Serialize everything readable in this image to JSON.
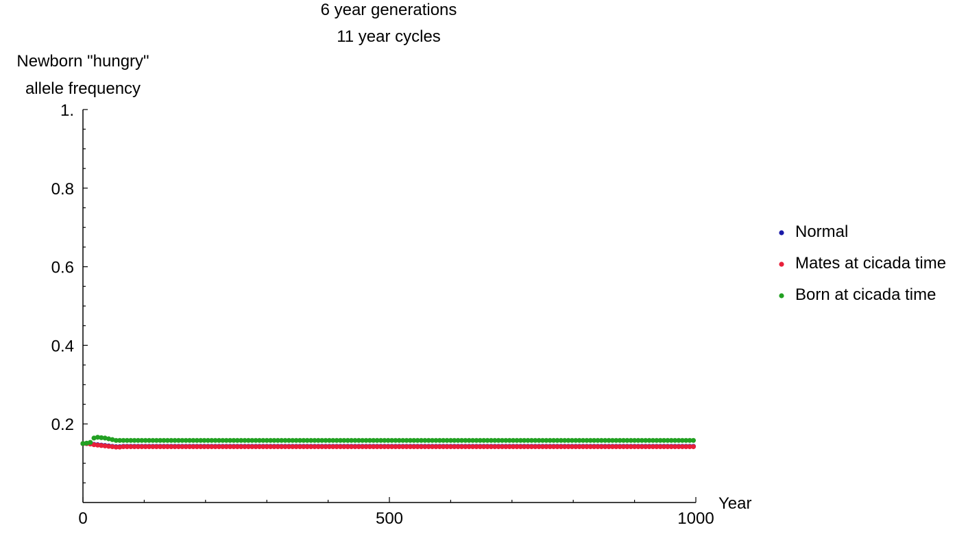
{
  "chart_data": {
    "type": "scatter",
    "title_lines": [
      "6 year generations",
      "11 year cycles"
    ],
    "ylabel_lines": [
      "Newborn \"hungry\"",
      "allele frequency"
    ],
    "xlabel": "Year",
    "xlim": [
      0,
      1000
    ],
    "ylim": [
      0,
      1
    ],
    "x_ticks": [
      {
        "value": 0,
        "label": "0"
      },
      {
        "value": 500,
        "label": "500"
      },
      {
        "value": 1000,
        "label": "1000"
      }
    ],
    "y_ticks": [
      {
        "value": 0.2,
        "label": "0.2"
      },
      {
        "value": 0.4,
        "label": "0.4"
      },
      {
        "value": 0.6,
        "label": "0.6"
      },
      {
        "value": 0.8,
        "label": "0.8"
      },
      {
        "value": 1.0,
        "label": "1."
      }
    ],
    "legend_position": "right",
    "x_step": 6,
    "series": [
      {
        "name": "Normal",
        "color": "#1a1aa8",
        "initial_points": [
          [
            0,
            0.15
          ],
          [
            6,
            0.15
          ],
          [
            12,
            0.149
          ],
          [
            18,
            0.148
          ],
          [
            24,
            0.147
          ],
          [
            30,
            0.146
          ],
          [
            36,
            0.145
          ],
          [
            42,
            0.144
          ],
          [
            48,
            0.143
          ],
          [
            54,
            0.142
          ],
          [
            60,
            0.142
          ]
        ],
        "steady_value": 0.143
      },
      {
        "name": "Mates at cicada time",
        "color": "#e8203a",
        "initial_points": [
          [
            0,
            0.15
          ],
          [
            6,
            0.15
          ],
          [
            12,
            0.149
          ],
          [
            18,
            0.147
          ],
          [
            24,
            0.146
          ],
          [
            30,
            0.145
          ],
          [
            36,
            0.144
          ],
          [
            42,
            0.143
          ],
          [
            48,
            0.142
          ],
          [
            54,
            0.141
          ],
          [
            60,
            0.141
          ]
        ],
        "steady_value": 0.142
      },
      {
        "name": "Born at cicada time",
        "color": "#22a022",
        "initial_points": [
          [
            0,
            0.15
          ],
          [
            6,
            0.151
          ],
          [
            12,
            0.153
          ],
          [
            18,
            0.164
          ],
          [
            24,
            0.166
          ],
          [
            30,
            0.165
          ],
          [
            36,
            0.164
          ],
          [
            42,
            0.162
          ],
          [
            48,
            0.16
          ],
          [
            54,
            0.158
          ],
          [
            60,
            0.158
          ]
        ],
        "steady_value": 0.158
      }
    ]
  }
}
